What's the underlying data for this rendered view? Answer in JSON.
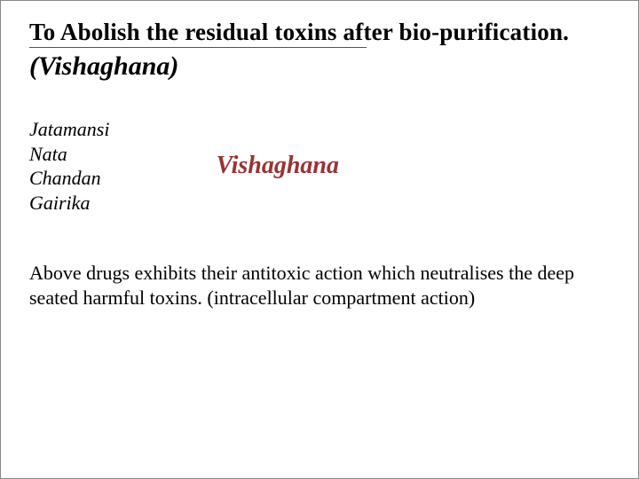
{
  "title": {
    "line1": "To Abolish the residual toxins after bio-purification.",
    "line2": "(Vishaghana)"
  },
  "colors": {
    "text": "#000000",
    "accent": "#9a3232",
    "rule": "#555555",
    "background": "#ffffff"
  },
  "typography": {
    "family": "Times New Roman",
    "title_line1_pt": 20,
    "title_line2_pt": 22,
    "drug_list_pt": 16,
    "label_pt": 21,
    "footer_pt": 16
  },
  "drugs": [
    "Jatamansi",
    "Nata",
    "Chandan",
    "Gairika"
  ],
  "label": "Vishaghana",
  "footer": "Above drugs exhibits their antitoxic action which neutralises the deep seated harmful toxins. (intracellular compartment action)"
}
